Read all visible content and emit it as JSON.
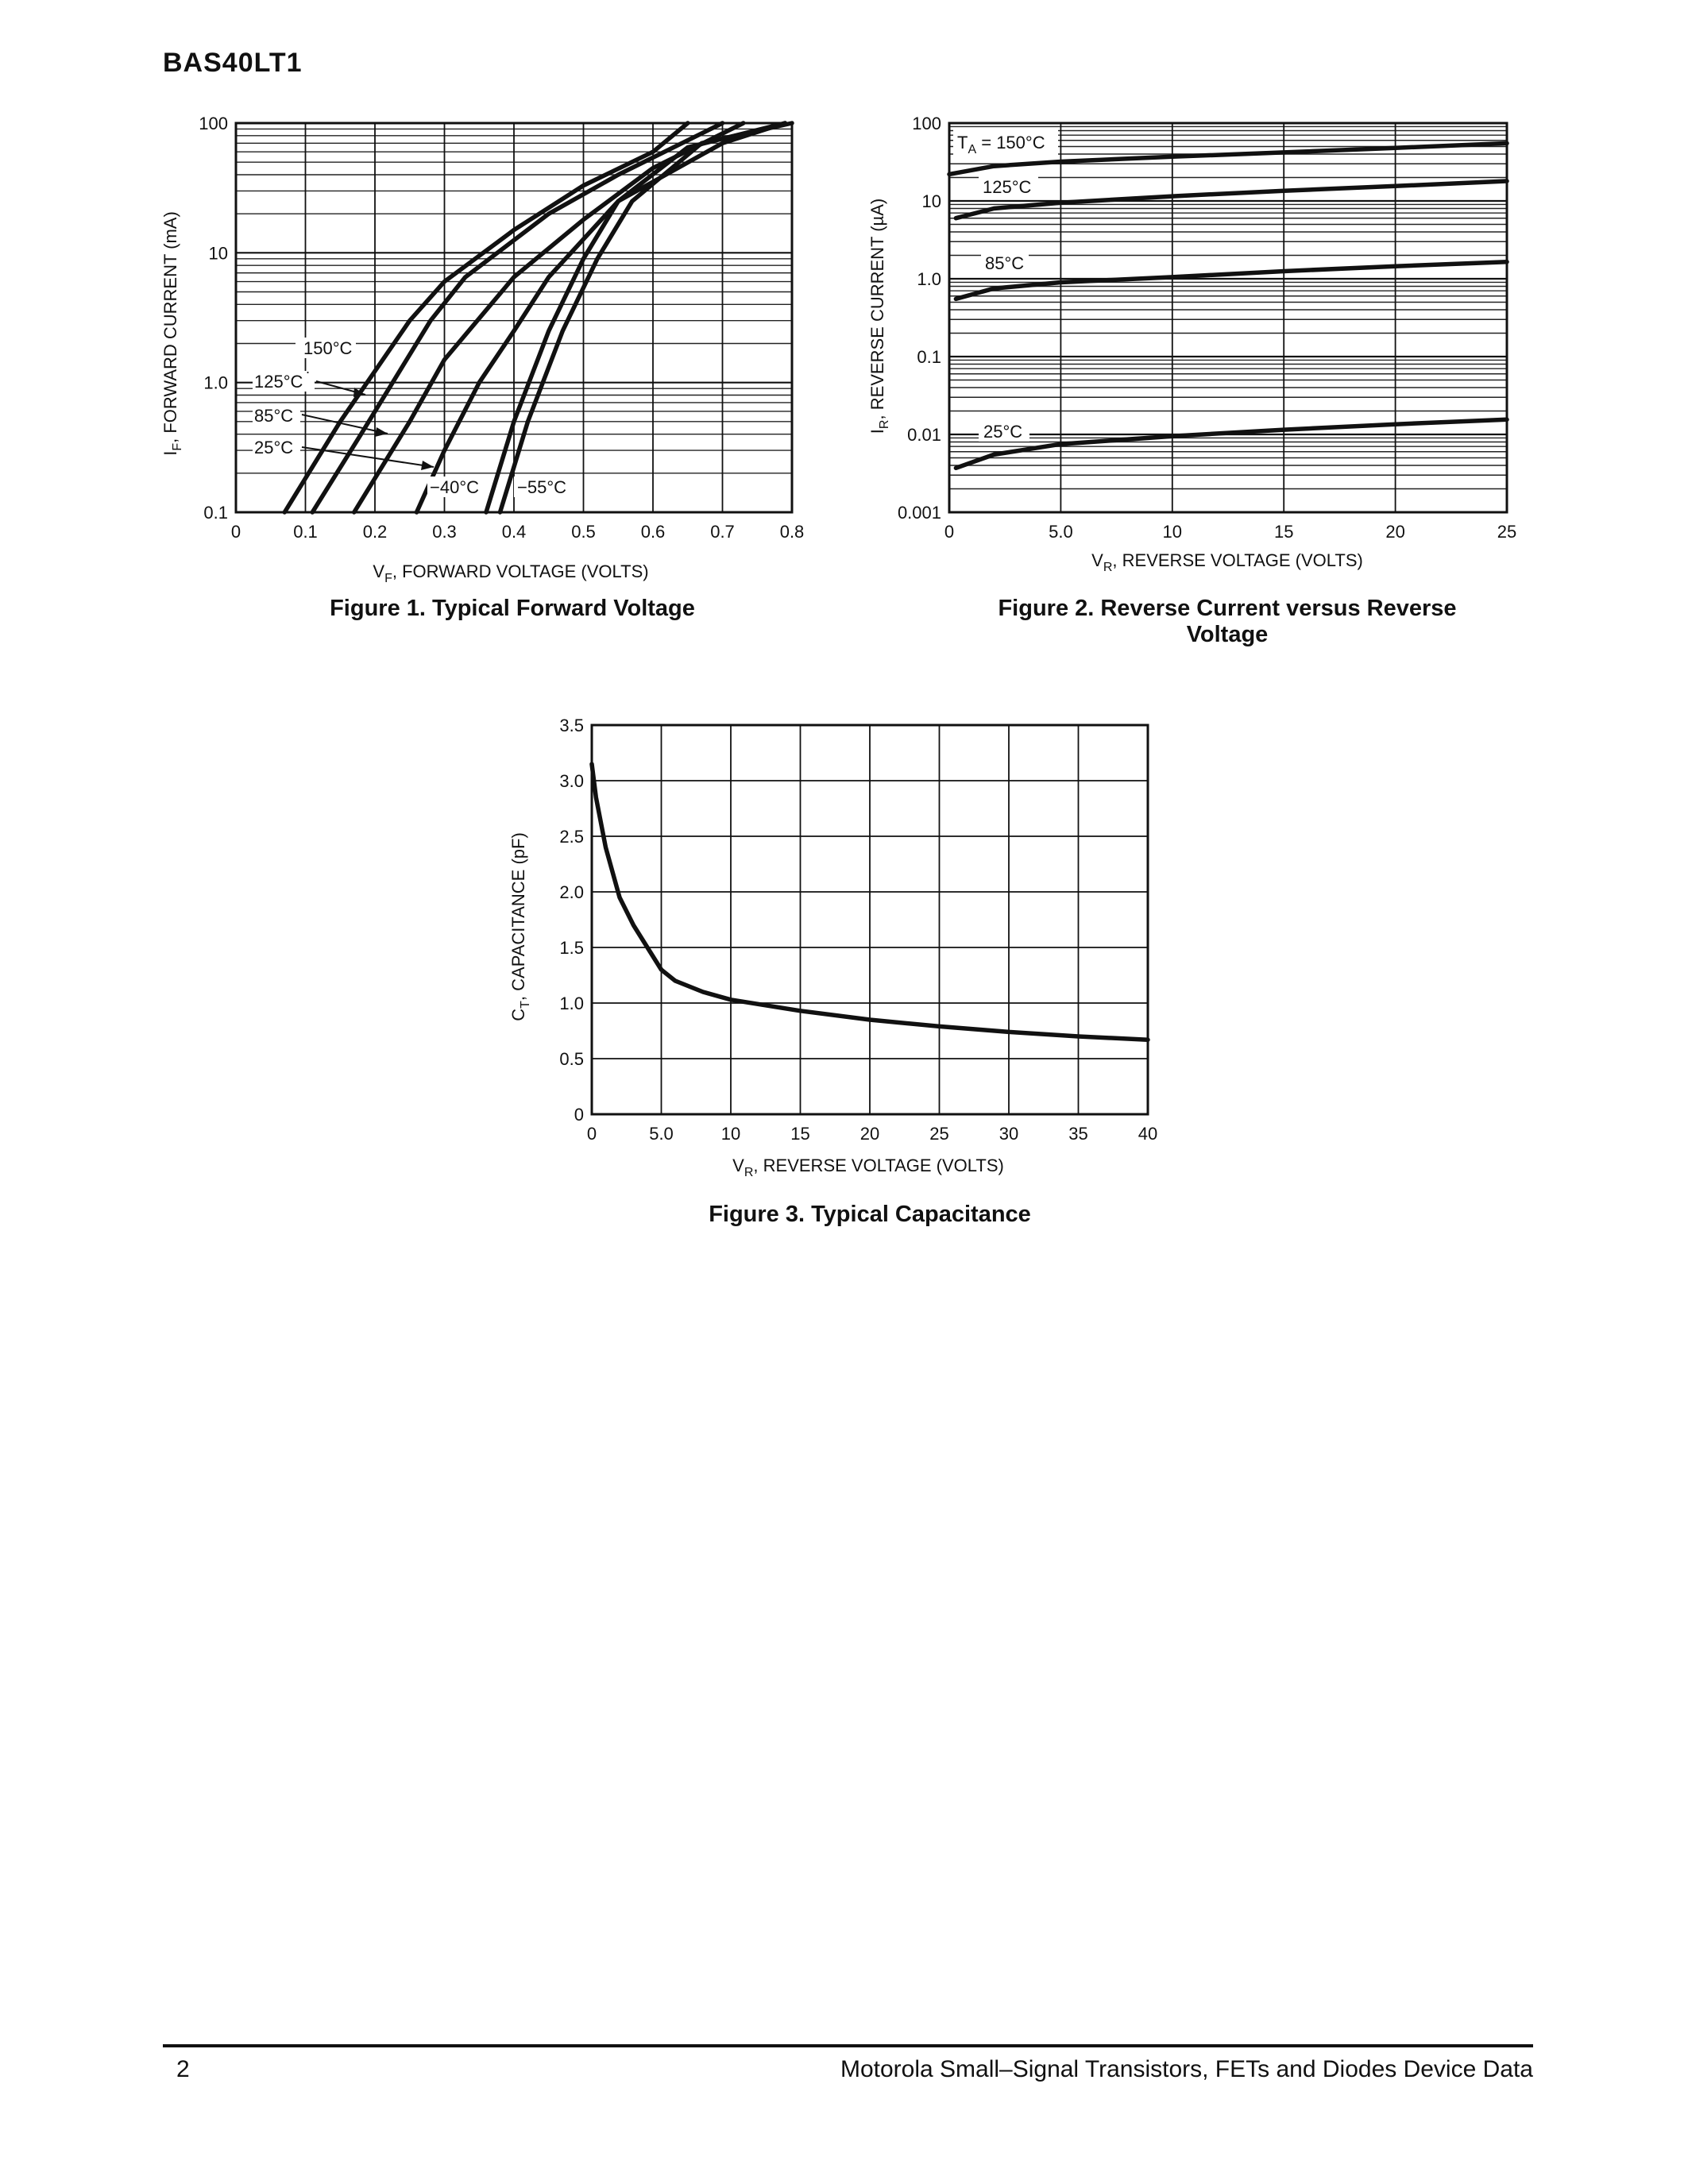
{
  "header": {
    "part_number": "BAS40LT1"
  },
  "figure1": {
    "caption": "Figure 1. Typical Forward Voltage",
    "y_axis_label": {
      "main": "I",
      "sub": "F",
      "rest": ", FORWARD CURRENT (mA)"
    },
    "x_axis_label": {
      "main": "V",
      "sub": "F",
      "rest": ", FORWARD VOLTAGE (VOLTS)"
    },
    "y_ticks": [
      "100",
      "10",
      "1.0",
      "0.1"
    ],
    "x_ticks": [
      "0",
      "0.1",
      "0.2",
      "0.3",
      "0.4",
      "0.5",
      "0.6",
      "0.7",
      "0.8"
    ],
    "curve_labels": [
      "150°C",
      "125°C",
      "85°C",
      "25°C",
      "−40°C",
      "−55°C"
    ]
  },
  "figure2": {
    "caption": "Figure 2. Reverse Current versus Reverse Voltage",
    "y_axis_label": {
      "main": "I",
      "sub": "R",
      "rest": ", REVERSE CURRENT (µA)"
    },
    "x_axis_label": {
      "main": "V",
      "sub": "R",
      "rest": ", REVERSE VOLTAGE (VOLTS)"
    },
    "y_ticks": [
      "100",
      "10",
      "1.0",
      "0.1",
      "0.01",
      "0.001"
    ],
    "x_ticks": [
      "0",
      "5.0",
      "10",
      "15",
      "20",
      "25"
    ],
    "curve_labels": {
      "ta_prefix": "T",
      "ta_sub": "A",
      "ta_rest": " = 150°C",
      "c125": "125°C",
      "c85": "85°C",
      "c25": "25°C"
    }
  },
  "figure3": {
    "caption": "Figure 3. Typical Capacitance",
    "y_axis_label": {
      "main": "C",
      "sub": "T",
      "rest": ", CAPACITANCE (pF)"
    },
    "x_axis_label": {
      "main": "V",
      "sub": "R",
      "rest": ", REVERSE VOLTAGE (VOLTS)"
    },
    "y_ticks": [
      "3.5",
      "3.0",
      "2.5",
      "2.0",
      "1.5",
      "1.0",
      "0.5",
      "0"
    ],
    "x_ticks": [
      "0",
      "5.0",
      "10",
      "15",
      "20",
      "25",
      "30",
      "35",
      "40"
    ]
  },
  "footer": {
    "page_number": "2",
    "publication": "Motorola Small–Signal Transistors, FETs and Diodes Device Data"
  },
  "chart_data": [
    {
      "type": "line",
      "title": "Figure 1. Typical Forward Voltage",
      "xlabel": "VF, FORWARD VOLTAGE (VOLTS)",
      "ylabel": "IF, FORWARD CURRENT (mA)",
      "xlim": [
        0,
        0.8
      ],
      "ylim": [
        0.1,
        100
      ],
      "yscale": "log",
      "grid": true,
      "series": [
        {
          "name": "150°C",
          "points": [
            [
              0.07,
              0.1
            ],
            [
              0.15,
              0.5
            ],
            [
              0.25,
              3.0
            ],
            [
              0.3,
              6.0
            ],
            [
              0.4,
              15
            ],
            [
              0.5,
              33
            ],
            [
              0.6,
              60
            ],
            [
              0.65,
              100
            ]
          ]
        },
        {
          "name": "125°C",
          "points": [
            [
              0.11,
              0.1
            ],
            [
              0.18,
              0.4
            ],
            [
              0.28,
              3.0
            ],
            [
              0.33,
              6.5
            ],
            [
              0.45,
              20
            ],
            [
              0.55,
              40
            ],
            [
              0.7,
              100
            ]
          ]
        },
        {
          "name": "85°C",
          "points": [
            [
              0.17,
              0.1
            ],
            [
              0.25,
              0.5
            ],
            [
              0.3,
              1.5
            ],
            [
              0.4,
              6.5
            ],
            [
              0.5,
              18
            ],
            [
              0.6,
              45
            ],
            [
              0.73,
              100
            ]
          ]
        },
        {
          "name": "25°C",
          "points": [
            [
              0.26,
              0.1
            ],
            [
              0.3,
              0.3
            ],
            [
              0.35,
              1.0
            ],
            [
              0.4,
              2.5
            ],
            [
              0.45,
              6.5
            ],
            [
              0.55,
              25
            ],
            [
              0.7,
              70
            ],
            [
              0.79,
              100
            ]
          ]
        },
        {
          "name": "−40°C",
          "points": [
            [
              0.36,
              0.1
            ],
            [
              0.4,
              0.5
            ],
            [
              0.45,
              2.5
            ],
            [
              0.5,
              9
            ],
            [
              0.55,
              25
            ],
            [
              0.65,
              65
            ],
            [
              0.79,
              100
            ]
          ]
        },
        {
          "name": "−55°C",
          "points": [
            [
              0.38,
              0.1
            ],
            [
              0.42,
              0.5
            ],
            [
              0.47,
              2.5
            ],
            [
              0.52,
              9
            ],
            [
              0.57,
              25
            ],
            [
              0.67,
              70
            ],
            [
              0.8,
              100
            ]
          ]
        }
      ]
    },
    {
      "type": "line",
      "title": "Figure 2. Reverse Current versus Reverse Voltage",
      "xlabel": "VR, REVERSE VOLTAGE (VOLTS)",
      "ylabel": "IR, REVERSE CURRENT (µA)",
      "xlim": [
        0,
        25
      ],
      "ylim": [
        0.001,
        100
      ],
      "yscale": "log",
      "grid": true,
      "series": [
        {
          "name": "TA = 150°C",
          "points": [
            [
              0,
              22
            ],
            [
              2,
              28
            ],
            [
              5,
              32
            ],
            [
              10,
              37
            ],
            [
              15,
              42
            ],
            [
              20,
              48
            ],
            [
              25,
              55
            ]
          ]
        },
        {
          "name": "125°C",
          "points": [
            [
              0.3,
              6
            ],
            [
              2,
              8
            ],
            [
              5,
              9.5
            ],
            [
              10,
              11.5
            ],
            [
              15,
              13.5
            ],
            [
              20,
              15.5
            ],
            [
              25,
              18
            ]
          ]
        },
        {
          "name": "85°C",
          "points": [
            [
              0.3,
              0.55
            ],
            [
              2,
              0.75
            ],
            [
              5,
              0.9
            ],
            [
              10,
              1.05
            ],
            [
              15,
              1.25
            ],
            [
              20,
              1.45
            ],
            [
              25,
              1.65
            ]
          ]
        },
        {
          "name": "25°C",
          "points": [
            [
              0.3,
              0.0037
            ],
            [
              2,
              0.0055
            ],
            [
              5,
              0.0075
            ],
            [
              10,
              0.0095
            ],
            [
              15,
              0.0115
            ],
            [
              20,
              0.0135
            ],
            [
              25,
              0.0155
            ]
          ]
        }
      ]
    },
    {
      "type": "line",
      "title": "Figure 3. Typical Capacitance",
      "xlabel": "VR, REVERSE VOLTAGE (VOLTS)",
      "ylabel": "CT, CAPACITANCE (pF)",
      "xlim": [
        0,
        40
      ],
      "ylim": [
        0,
        3.5
      ],
      "grid": true,
      "series": [
        {
          "name": "",
          "points": [
            [
              0,
              3.15
            ],
            [
              0.3,
              2.85
            ],
            [
              1,
              2.4
            ],
            [
              2,
              1.95
            ],
            [
              3,
              1.7
            ],
            [
              4,
              1.5
            ],
            [
              5,
              1.3
            ],
            [
              6,
              1.2
            ],
            [
              8,
              1.1
            ],
            [
              10,
              1.03
            ],
            [
              15,
              0.93
            ],
            [
              20,
              0.85
            ],
            [
              25,
              0.79
            ],
            [
              30,
              0.74
            ],
            [
              35,
              0.7
            ],
            [
              40,
              0.67
            ]
          ]
        }
      ]
    }
  ]
}
